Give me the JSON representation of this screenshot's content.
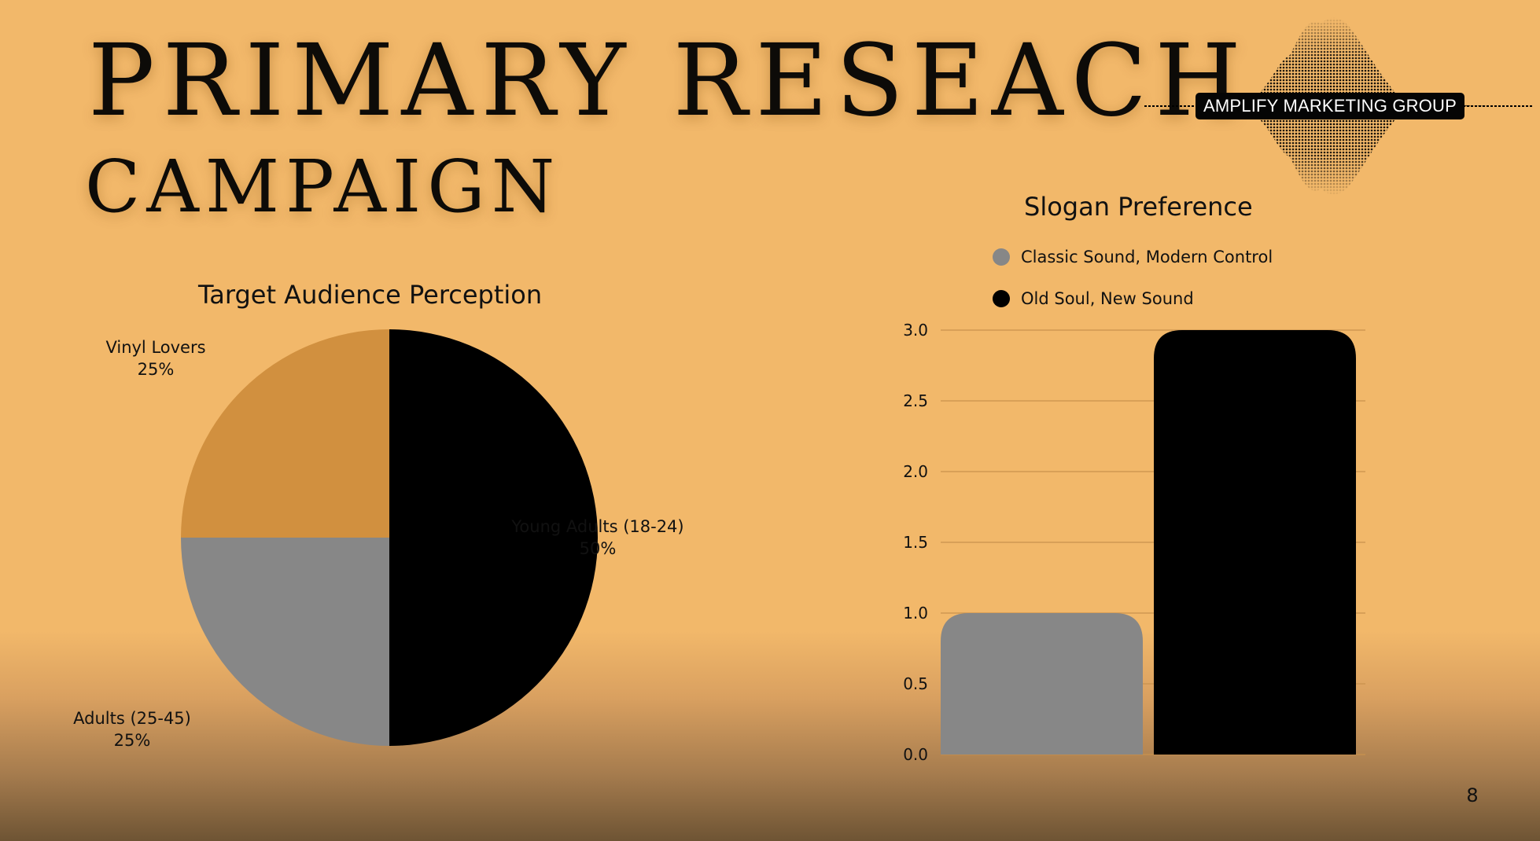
{
  "title": {
    "line1": "PRIMARY RESEACH",
    "line2": "CAMPAIGN"
  },
  "logo": {
    "text": "AMPLIFY MARKETING GROUP",
    "icon": "sound-wave-icon"
  },
  "page_number": "8",
  "colors": {
    "background": "#f2b86a",
    "black": "#000000",
    "gray": "#878787",
    "amber": "#d1903f"
  },
  "chart_data": [
    {
      "type": "pie",
      "title": "Target Audience Perception",
      "slices": [
        {
          "label": "Young Adults (18-24)",
          "value": 50,
          "display": "50%",
          "color": "#000000"
        },
        {
          "label": "Vinyl Lovers",
          "value": 25,
          "display": "25%",
          "color": "#878787"
        },
        {
          "label": "Adults (25-45)",
          "value": 25,
          "display": "25%",
          "color": "#d1903f"
        }
      ]
    },
    {
      "type": "bar",
      "title": "Slogan Preference",
      "legend_position": "top",
      "grid": true,
      "ylim": [
        0,
        3
      ],
      "yticks": [
        "0.0",
        "0.5",
        "1.0",
        "1.5",
        "2.0",
        "2.5",
        "3.0"
      ],
      "series": [
        {
          "name": "Classic Sound, Modern Control",
          "value": 1,
          "color": "#878787"
        },
        {
          "name": "Old Soul, New Sound",
          "value": 3,
          "color": "#000000"
        }
      ]
    }
  ]
}
